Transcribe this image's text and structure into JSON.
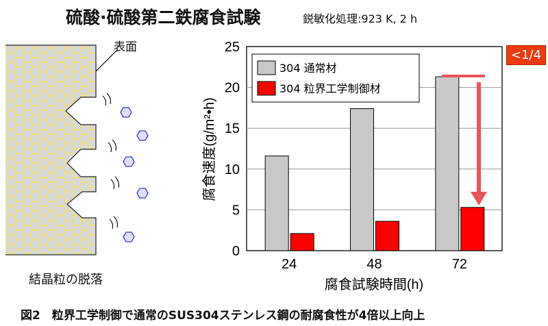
{
  "title": "硫酸·硫酸第二鉄腐食試験",
  "subtitle": "鋭敏化処理:923 K, 2 h",
  "diagram": {
    "surface_label": "表面",
    "caption": "結晶粒の脱落"
  },
  "figure_caption": "図2　粒界工学制御で通常のSUS304ステンレス鋼の耐腐食性が4倍以上向上",
  "ratio_badge": "<1/4",
  "colors": {
    "normal": "#c8c8c8",
    "gbe": "#ff0000",
    "arrow": "#e8545a",
    "badge": "#ef3b10"
  },
  "chart_data": {
    "type": "bar",
    "categories": [
      "24",
      "48",
      "72"
    ],
    "series": [
      {
        "name": "304 通常材",
        "values": [
          11.6,
          17.4,
          21.3
        ]
      },
      {
        "name": "304 粒界工学制御材",
        "values": [
          2.1,
          3.6,
          5.3
        ]
      }
    ],
    "xlabel": "腐食試験時間(h)",
    "ylabel": "腐食速度(g/m²•h)",
    "ylim": [
      0,
      25
    ],
    "yticks": [
      "0",
      "5",
      "10",
      "15",
      "20",
      "25"
    ],
    "grid": true,
    "legend_position": "top-left"
  }
}
